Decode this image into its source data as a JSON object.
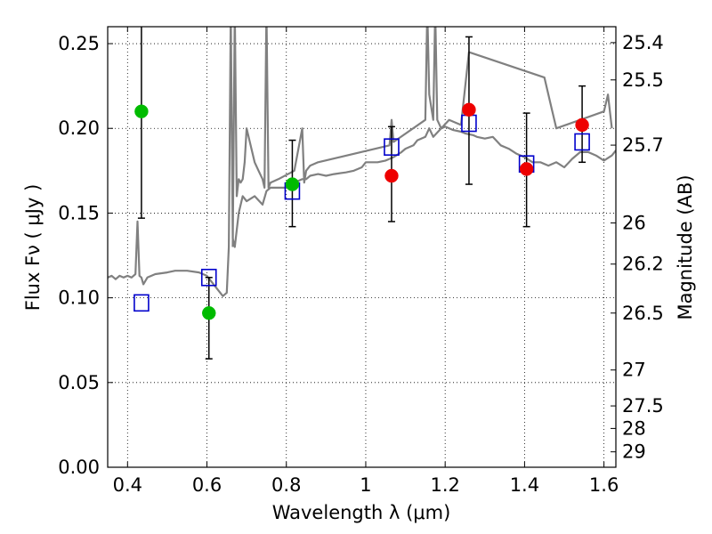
{
  "chart_data": {
    "type": "scatter",
    "xlabel": "Wavelength  λ (μm)",
    "ylabel": "Flux  Fν  ( μJy )",
    "y2label": "Magnitude (AB)",
    "xlim": [
      0.35,
      1.63
    ],
    "ylim": [
      0.0,
      0.26
    ],
    "grid": true,
    "x_ticks": [
      0.4,
      0.6,
      0.8,
      1.0,
      1.2,
      1.4,
      1.6
    ],
    "x_tick_labels": [
      "0.4",
      "0.6",
      "0.8",
      "1",
      "1.2",
      "1.4",
      "1.6"
    ],
    "y_ticks": [
      0.0,
      0.05,
      0.1,
      0.15,
      0.2,
      0.25
    ],
    "y_tick_labels": [
      "0.00",
      "0.05",
      "0.10",
      "0.15",
      "0.20",
      "0.25"
    ],
    "y2_ticks": [
      {
        "label": "25.4",
        "flux": 0.2506
      },
      {
        "label": "25.5",
        "flux": 0.2286
      },
      {
        "label": "25.7",
        "flux": 0.1901
      },
      {
        "label": "26",
        "flux": 0.1442
      },
      {
        "label": "26.2",
        "flux": 0.1199
      },
      {
        "label": "26.5",
        "flux": 0.091
      },
      {
        "label": "27",
        "flux": 0.0574
      },
      {
        "label": "27.5",
        "flux": 0.0362
      },
      {
        "label": "28",
        "flux": 0.0229
      },
      {
        "label": "29",
        "flux": 0.0091
      }
    ],
    "series": [
      {
        "kind": "line",
        "color": "#808080",
        "x": [
          0.35,
          0.36,
          0.37,
          0.38,
          0.39,
          0.4,
          0.41,
          0.42,
          0.425,
          0.43,
          0.435,
          0.44,
          0.45,
          0.47,
          0.5,
          0.52,
          0.55,
          0.58,
          0.6,
          0.62,
          0.64,
          0.65,
          0.655,
          0.66,
          0.665,
          0.67,
          0.675,
          0.68,
          0.69,
          0.7,
          0.72,
          0.74,
          0.75,
          0.76,
          0.78,
          0.8,
          0.82,
          0.84,
          0.85,
          0.86,
          0.88,
          0.9,
          0.92,
          0.95,
          0.97,
          0.99,
          1.0,
          1.01,
          1.03,
          1.05,
          1.07,
          1.09,
          1.1,
          1.12,
          1.13,
          1.15,
          1.16,
          1.17,
          1.19,
          1.2,
          1.22,
          1.24,
          1.25,
          1.27,
          1.28,
          1.3,
          1.32,
          1.34,
          1.36,
          1.38,
          1.4,
          1.42,
          1.44,
          1.46,
          1.48,
          1.5,
          1.52,
          1.54,
          1.56,
          1.58,
          1.6,
          1.62,
          1.63
        ],
        "y": [
          0.112,
          0.113,
          0.111,
          0.113,
          0.112,
          0.113,
          0.112,
          0.114,
          0.145,
          0.113,
          0.112,
          0.108,
          0.112,
          0.114,
          0.115,
          0.116,
          0.116,
          0.115,
          0.113,
          0.107,
          0.101,
          0.103,
          0.13,
          0.27,
          0.135,
          0.13,
          0.14,
          0.15,
          0.16,
          0.157,
          0.16,
          0.155,
          0.163,
          0.165,
          0.165,
          0.165,
          0.168,
          0.17,
          0.17,
          0.172,
          0.173,
          0.172,
          0.173,
          0.174,
          0.175,
          0.177,
          0.18,
          0.18,
          0.18,
          0.181,
          0.183,
          0.186,
          0.188,
          0.19,
          0.193,
          0.195,
          0.2,
          0.195,
          0.2,
          0.201,
          0.199,
          0.198,
          0.197,
          0.196,
          0.195,
          0.194,
          0.195,
          0.19,
          0.188,
          0.185,
          0.183,
          0.18,
          0.18,
          0.178,
          0.18,
          0.177,
          0.182,
          0.186,
          0.186,
          0.184,
          0.181,
          0.184,
          0.187
        ]
      },
      {
        "kind": "line",
        "color": "#808080",
        "x": [
          0.665,
          0.67,
          0.675,
          0.68,
          0.685,
          0.69,
          0.695,
          0.7,
          0.71,
          0.72,
          0.73,
          0.74,
          0.745,
          0.75,
          0.755,
          0.76,
          0.78,
          0.82,
          0.84,
          0.845,
          0.85,
          0.86,
          0.88,
          1.06,
          1.065,
          1.07,
          1.15,
          1.155,
          1.16,
          1.17,
          1.175,
          1.18,
          1.19,
          1.21,
          1.24,
          1.26,
          1.45,
          1.47,
          1.48,
          1.6,
          1.61,
          1.62
        ],
        "y": [
          0.13,
          0.27,
          0.16,
          0.17,
          0.168,
          0.17,
          0.18,
          0.2,
          0.19,
          0.18,
          0.175,
          0.17,
          0.165,
          0.27,
          0.165,
          0.168,
          0.17,
          0.175,
          0.2,
          0.168,
          0.175,
          0.178,
          0.18,
          0.19,
          0.205,
          0.192,
          0.205,
          0.27,
          0.22,
          0.205,
          0.27,
          0.205,
          0.2,
          0.205,
          0.202,
          0.245,
          0.23,
          0.21,
          0.2,
          0.21,
          0.22,
          0.2
        ]
      },
      {
        "kind": "open-square",
        "color": "#0000cc",
        "x": [
          0.435,
          0.605,
          0.815,
          1.065,
          1.26,
          1.405,
          1.545
        ],
        "y": [
          0.097,
          0.112,
          0.163,
          0.189,
          0.203,
          0.179,
          0.192
        ]
      },
      {
        "kind": "point",
        "color": "#00bb00",
        "x": [
          0.435,
          0.605,
          0.815
        ],
        "y": [
          0.21,
          0.091,
          0.167
        ],
        "yerr_low": [
          0.147,
          0.064,
          0.142
        ],
        "yerr_high": [
          0.265,
          0.112,
          0.193
        ]
      },
      {
        "kind": "point",
        "color": "#ee0000",
        "x": [
          1.065,
          1.26,
          1.405,
          1.545
        ],
        "y": [
          0.172,
          0.211,
          0.176,
          0.202
        ],
        "yerr_low": [
          0.145,
          0.167,
          0.142,
          0.18
        ],
        "yerr_high": [
          0.201,
          0.254,
          0.209,
          0.225
        ]
      }
    ]
  }
}
